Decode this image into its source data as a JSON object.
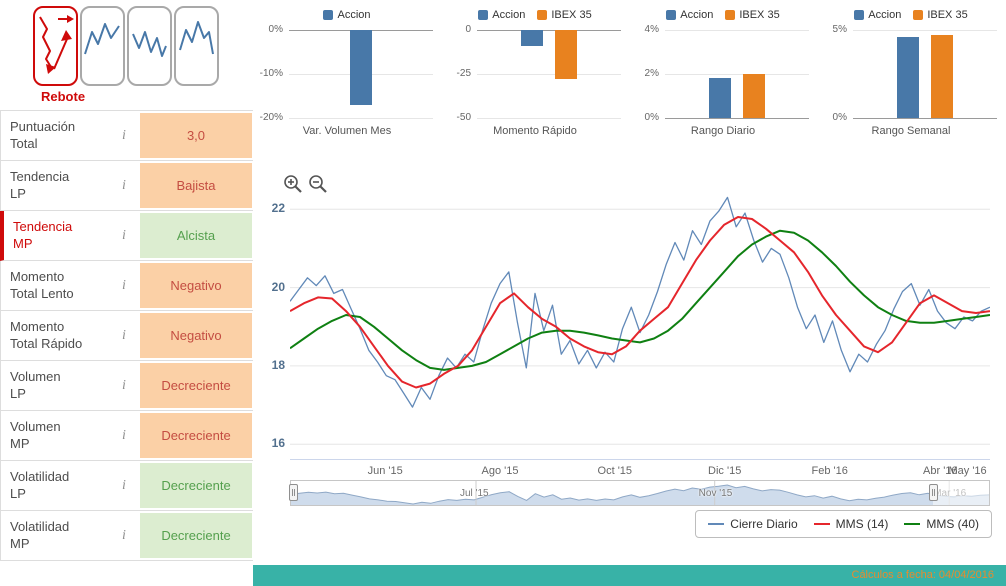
{
  "colors": {
    "accent_red": "#cf0a0a",
    "accion_blue": "#4878a8",
    "ibex_orange": "#e8821f",
    "negative_bg": "#fbd0a6",
    "negative_text": "#c44d42",
    "positive_bg": "#dcedd0",
    "positive_text": "#55a04e",
    "footer_bg": "#38b2a7",
    "footer_text": "#e98b2d",
    "daily_line": "#6189b8",
    "mms14_line": "#e5262c",
    "mms40_line": "#0f8012"
  },
  "icons": {
    "info": "italic-i",
    "zoom_in": "magnifier-plus",
    "zoom_out": "magnifier-minus"
  },
  "pattern_panel": {
    "selected_pattern": "Rebote",
    "patterns": [
      {
        "key": "rebote",
        "selected": true
      },
      {
        "key": "pattern-2",
        "selected": false
      },
      {
        "key": "pattern-3",
        "selected": false
      },
      {
        "key": "pattern-4",
        "selected": false
      }
    ]
  },
  "indicators": {
    "info_icon": "i",
    "rows": [
      {
        "key": "puntuacion-total",
        "label": "Puntuación\nTotal",
        "value": "3,0",
        "state": "negative",
        "selected": false
      },
      {
        "key": "tendencia-lp",
        "label": "Tendencia\nLP",
        "value": "Bajista",
        "state": "negative",
        "selected": false
      },
      {
        "key": "tendencia-mp",
        "label": "Tendencia\nMP",
        "value": "Alcista",
        "state": "positive",
        "selected": true
      },
      {
        "key": "momento-total-lento",
        "label": "Momento\nTotal Lento",
        "value": "Negativo",
        "state": "negative",
        "selected": false
      },
      {
        "key": "momento-total-rapido",
        "label": "Momento\nTotal Rápido",
        "value": "Negativo",
        "state": "negative",
        "selected": false
      },
      {
        "key": "volumen-lp",
        "label": "Volumen\nLP",
        "value": "Decreciente",
        "state": "negative",
        "selected": false
      },
      {
        "key": "volumen-mp",
        "label": "Volumen\nMP",
        "value": "Decreciente",
        "state": "negative",
        "selected": false
      },
      {
        "key": "volatilidad-lp",
        "label": "Volatilidad\nLP",
        "value": "Decreciente",
        "state": "positive",
        "selected": false
      },
      {
        "key": "volatilidad-mp",
        "label": "Volatilidad\nMP",
        "value": "Decreciente",
        "state": "positive",
        "selected": false
      }
    ]
  },
  "chart_data": [
    {
      "type": "bar",
      "key": "var-volumen-mes",
      "title": "Var. Volumen Mes",
      "ylim": [
        -20,
        0
      ],
      "y_ticks": [
        {
          "label": "0%",
          "value": 0
        },
        {
          "label": "-10%",
          "value": -10
        },
        {
          "label": "-20%",
          "value": -20
        }
      ],
      "series": [
        {
          "name": "Accion",
          "color": "#4878a8",
          "value": -17
        }
      ]
    },
    {
      "type": "bar",
      "key": "momento-rapido",
      "title": "Momento Rápido",
      "ylim": [
        -50,
        0
      ],
      "y_ticks": [
        {
          "label": "0",
          "value": 0
        },
        {
          "label": "-25",
          "value": -25
        },
        {
          "label": "-50",
          "value": -50
        }
      ],
      "series": [
        {
          "name": "Accion",
          "color": "#4878a8",
          "value": -9
        },
        {
          "name": "IBEX 35",
          "color": "#e8821f",
          "value": -28
        }
      ]
    },
    {
      "type": "bar",
      "key": "rango-diario",
      "title": "Rango Diario",
      "ylim": [
        0,
        4
      ],
      "y_ticks": [
        {
          "label": "4%",
          "value": 4
        },
        {
          "label": "2%",
          "value": 2
        },
        {
          "label": "0%",
          "value": 0
        }
      ],
      "series": [
        {
          "name": "Accion",
          "color": "#4878a8",
          "value": 1.8
        },
        {
          "name": "IBEX 35",
          "color": "#e8821f",
          "value": 2.0
        }
      ]
    },
    {
      "type": "bar",
      "key": "rango-semanal",
      "title": "Rango Semanal",
      "ylim": [
        0,
        5
      ],
      "y_ticks": [
        {
          "label": "5%",
          "value": 5
        },
        {
          "label": "0%",
          "value": 0
        }
      ],
      "series": [
        {
          "name": "Accion",
          "color": "#4878a8",
          "value": 4.6
        },
        {
          "name": "IBEX 35",
          "color": "#e8821f",
          "value": 4.7
        }
      ]
    },
    {
      "type": "line",
      "key": "precio-diario",
      "title": "",
      "ylim": [
        15.6,
        23.0
      ],
      "y_ticks": [
        {
          "label": "22",
          "value": 22
        },
        {
          "label": "20",
          "value": 20
        },
        {
          "label": "18",
          "value": 18
        },
        {
          "label": "16",
          "value": 16
        }
      ],
      "x_ticks": [
        {
          "label": "Jun '15",
          "pos": 0.136
        },
        {
          "label": "Ago '15",
          "pos": 0.3
        },
        {
          "label": "Oct '15",
          "pos": 0.464
        },
        {
          "label": "Dic '15",
          "pos": 0.621
        },
        {
          "label": "Feb '16",
          "pos": 0.771
        },
        {
          "label": "Abr '16",
          "pos": 0.929
        },
        {
          "label": "May '16",
          "pos": 0.968
        }
      ],
      "series": [
        {
          "name": "Cierre Diario",
          "color": "#6189b8",
          "width": 1.3,
          "values": [
            19.65,
            19.95,
            20.25,
            20.05,
            20.3,
            19.85,
            19.95,
            19.45,
            18.95,
            18.4,
            18.1,
            17.75,
            17.65,
            17.3,
            16.95,
            17.45,
            17.15,
            17.75,
            18.2,
            17.95,
            18.3,
            18.1,
            18.9,
            19.6,
            20.1,
            20.4,
            19.1,
            17.95,
            19.85,
            18.9,
            19.55,
            18.3,
            18.65,
            18.05,
            18.4,
            17.95,
            18.35,
            18.1,
            18.95,
            19.5,
            18.85,
            19.3,
            19.9,
            20.6,
            21.15,
            20.7,
            21.45,
            21.1,
            21.7,
            21.95,
            22.3,
            21.55,
            21.9,
            21.2,
            20.65,
            21.0,
            20.85,
            20.25,
            19.5,
            18.95,
            19.3,
            18.6,
            19.15,
            18.4,
            17.85,
            18.3,
            18.1,
            18.55,
            18.9,
            19.45,
            19.9,
            20.1,
            19.55,
            19.95,
            19.4,
            19.1,
            18.95,
            19.25,
            19.15,
            19.4,
            19.5
          ]
        },
        {
          "name": "MMS (14)",
          "color": "#e5262c",
          "width": 2,
          "values": [
            19.4,
            19.6,
            19.75,
            19.72,
            19.4,
            19.0,
            18.5,
            18.0,
            17.6,
            17.45,
            17.55,
            17.8,
            18.0,
            18.4,
            19.0,
            19.6,
            19.85,
            19.5,
            19.2,
            19.0,
            18.7,
            18.5,
            18.35,
            18.3,
            18.5,
            18.9,
            19.2,
            19.5,
            20.1,
            20.7,
            21.2,
            21.6,
            21.8,
            21.75,
            21.5,
            21.2,
            20.9,
            20.4,
            19.8,
            19.3,
            18.9,
            18.5,
            18.35,
            18.6,
            19.1,
            19.6,
            19.8,
            19.6,
            19.4,
            19.35,
            19.4
          ]
        },
        {
          "name": "MMS (40)",
          "color": "#0f8012",
          "width": 2,
          "values": [
            18.45,
            18.7,
            18.95,
            19.15,
            19.3,
            19.25,
            19.0,
            18.7,
            18.4,
            18.15,
            17.95,
            17.9,
            17.95,
            18.0,
            18.1,
            18.3,
            18.5,
            18.7,
            18.85,
            18.9,
            18.9,
            18.85,
            18.78,
            18.7,
            18.65,
            18.6,
            18.7,
            18.9,
            19.2,
            19.6,
            20.0,
            20.4,
            20.8,
            21.1,
            21.3,
            21.45,
            21.4,
            21.2,
            20.9,
            20.55,
            20.15,
            19.8,
            19.5,
            19.3,
            19.15,
            19.1,
            19.1,
            19.15,
            19.2,
            19.25,
            19.3
          ]
        }
      ],
      "navigator": {
        "labels": [
          {
            "label": "Jul '15",
            "pos": 0.265
          },
          {
            "label": "Nov '15",
            "pos": 0.607
          },
          {
            "label": "Mar '16",
            "pos": 0.943
          }
        ],
        "handles": [
          0,
          0.92
        ]
      }
    }
  ],
  "footer": {
    "text": "Cálculos a fecha: 04/04/2016"
  }
}
